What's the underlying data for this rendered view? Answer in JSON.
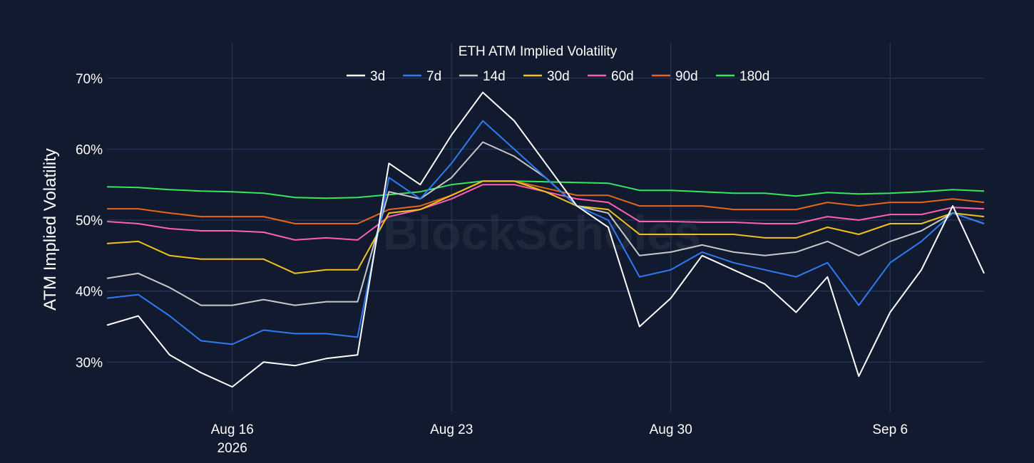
{
  "chart_data": {
    "type": "line",
    "title": "ETH ATM Implied Volatility",
    "ylabel": "ATM Implied Volatility",
    "xlabel": "",
    "watermark": "BlockScholes",
    "ylim": [
      23,
      75
    ],
    "yticks": [
      {
        "value": 30,
        "label": "30%"
      },
      {
        "value": 40,
        "label": "40%"
      },
      {
        "value": 50,
        "label": "50%"
      },
      {
        "value": 60,
        "label": "60%"
      },
      {
        "value": 70,
        "label": "70%"
      }
    ],
    "x_range_days": [
      13.0,
      21.1
    ],
    "xticks": [
      {
        "value": 16,
        "label": "Aug 16",
        "sublabel": "2026"
      },
      {
        "value": 23,
        "label": "Aug 23",
        "sublabel": ""
      },
      {
        "value": 30,
        "label": "Aug 30",
        "sublabel": ""
      },
      {
        "value": 37,
        "label": "Sep 6",
        "sublabel": ""
      }
    ],
    "grid": true,
    "legend_position": "top",
    "x": [
      12.0,
      13.0,
      14.0,
      15.0,
      16.0,
      17.0,
      18.0,
      19.0,
      20.0,
      21.0,
      22.0,
      23.0,
      24.0,
      25.0,
      26.0,
      27.0,
      28.0,
      29.0,
      30.0,
      31.0,
      32.0,
      33.0,
      34.0,
      35.0,
      36.0,
      37.0,
      38.0,
      39.0,
      40.0
    ],
    "series": [
      {
        "name": "3d",
        "color": "#ffffff",
        "values": [
          35.2,
          36.5,
          31,
          28.5,
          26.5,
          30,
          29.5,
          30.5,
          31,
          58,
          55,
          62,
          68,
          64,
          58,
          52,
          49,
          35,
          39,
          45,
          43,
          41,
          37,
          42,
          28,
          37,
          43,
          52,
          42.5
        ]
      },
      {
        "name": "7d",
        "color": "#2f7bf5",
        "values": [
          39,
          39.5,
          36.5,
          33,
          32.5,
          34.5,
          34,
          34,
          33.5,
          56,
          53,
          58,
          64,
          60,
          56,
          52,
          50,
          42,
          43,
          45.5,
          44,
          43,
          42,
          44,
          38,
          44,
          47,
          51,
          49.5
        ]
      },
      {
        "name": "14d",
        "color": "#c8c8c8",
        "values": [
          41.8,
          42.5,
          40.5,
          38,
          38,
          38.8,
          38,
          38.5,
          38.5,
          54,
          53,
          56,
          61,
          59,
          56,
          52,
          51,
          45,
          45.5,
          46.5,
          45.5,
          45,
          45.5,
          47,
          45,
          47,
          48.5,
          51,
          49.5
        ]
      },
      {
        "name": "30d",
        "color": "#f2c21b",
        "values": [
          46.7,
          47,
          45,
          44.5,
          44.5,
          44.5,
          42.5,
          43,
          43,
          51,
          51.5,
          53.5,
          55.5,
          55.5,
          54,
          52,
          51.5,
          48,
          48,
          48,
          48,
          47.5,
          47.5,
          49,
          48,
          49.5,
          49.5,
          51,
          50.5
        ]
      },
      {
        "name": "60d",
        "color": "#ff5fb4",
        "values": [
          49.8,
          49.5,
          48.8,
          48.5,
          48.5,
          48.3,
          47.2,
          47.5,
          47.2,
          50.5,
          51.5,
          53,
          55,
          55,
          54,
          53,
          52.5,
          49.8,
          49.8,
          49.7,
          49.7,
          49.5,
          49.5,
          50.5,
          50,
          50.8,
          50.8,
          51.8,
          51.6
        ]
      },
      {
        "name": "90d",
        "color": "#e8651a",
        "values": [
          51.6,
          51.6,
          51,
          50.5,
          50.5,
          50.5,
          49.5,
          49.5,
          49.5,
          51.5,
          52,
          53.5,
          55.5,
          55.5,
          54.5,
          53.5,
          53.5,
          52,
          52,
          52,
          51.5,
          51.5,
          51.5,
          52.5,
          52,
          52.5,
          52.5,
          53,
          52.5
        ]
      },
      {
        "name": "180d",
        "color": "#35e85c",
        "values": [
          54.7,
          54.6,
          54.3,
          54.1,
          54,
          53.8,
          53.2,
          53.1,
          53.2,
          53.6,
          54,
          55,
          55.5,
          55.5,
          55.4,
          55.3,
          55.2,
          54.2,
          54.2,
          54,
          53.8,
          53.8,
          53.4,
          53.9,
          53.7,
          53.8,
          54,
          54.3,
          54.1
        ]
      }
    ]
  }
}
